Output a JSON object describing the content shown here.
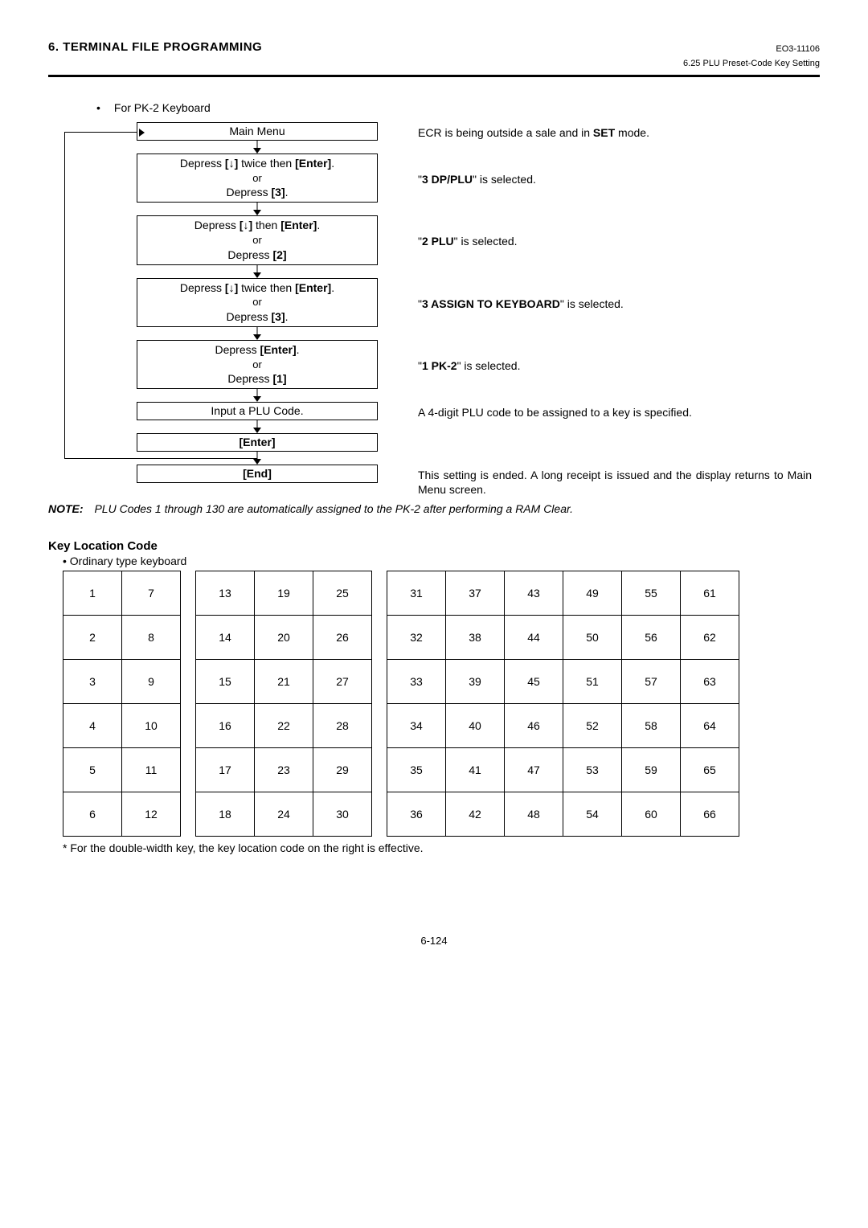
{
  "header": {
    "section": "6. TERMINAL FILE PROGRAMMING",
    "docCode": "EO3-11106",
    "subtitle": "6.25 PLU Preset-Code Key Setting"
  },
  "bullet": "For PK-2 Keyboard",
  "flow": {
    "steps": [
      {
        "lines": [
          "Main Menu"
        ],
        "desc": "ECR is being outside a sale and in <b>SET</b> mode."
      },
      {
        "lines": [
          "Depress <b>[↓]</b> twice then <b>[Enter]</b>.",
          "or",
          "Depress <b>[3]</b>."
        ],
        "desc": "\"<b>3 DP/PLU</b>\" is selected."
      },
      {
        "lines": [
          "Depress <b>[↓]</b> then <b>[Enter]</b>.",
          "or",
          "Depress <b>[2]</b>"
        ],
        "desc": "\"<b>2 PLU</b>\" is selected."
      },
      {
        "lines": [
          "Depress <b>[↓]</b> twice then <b>[Enter]</b>.",
          "or",
          "Depress <b>[3]</b>."
        ],
        "desc": "\"<b>3 ASSIGN TO KEYBOARD</b>\" is selected."
      },
      {
        "lines": [
          "Depress <b>[Enter]</b>.",
          "or",
          "Depress <b>[1]</b>"
        ],
        "desc": "\"<b>1 PK-2</b>\" is selected."
      },
      {
        "lines": [
          "Input a PLU Code."
        ],
        "desc": "A 4-digit PLU code to be assigned to a key is specified."
      },
      {
        "lines": [
          "<b>[Enter]</b>"
        ],
        "desc": ""
      },
      {
        "lines": [
          "<b>[End]</b>"
        ],
        "desc": "This setting is ended.  A long receipt is issued and the display returns to Main Menu screen."
      }
    ]
  },
  "note": {
    "label": "NOTE:",
    "text": "PLU Codes 1 through 130 are automatically assigned to the PK-2 after performing a RAM Clear."
  },
  "keyloc": {
    "heading": "Key Location Code",
    "sub": "• Ordinary type keyboard",
    "blocks": [
      {
        "cols": 2,
        "rows": 6,
        "start": 1,
        "colMajor": true
      },
      {
        "cols": 3,
        "rows": 6,
        "start": 13,
        "colMajor": true
      },
      {
        "cols": 6,
        "rows": 6,
        "start": 31,
        "colMajor": true
      }
    ],
    "footnote": "* For the double-width key, the key location code on the right is effective."
  },
  "pageNum": "6-124",
  "layout": {
    "descOffsets": [
      2,
      46,
      116,
      184,
      252,
      314,
      388
    ]
  }
}
